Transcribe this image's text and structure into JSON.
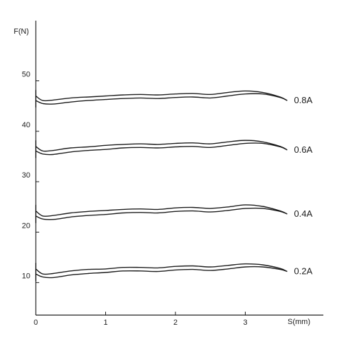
{
  "chart_data": {
    "type": "line",
    "title": "",
    "ylabel": "F(N)",
    "xlabel": "S(mm)",
    "xlim": [
      0,
      3.5
    ],
    "ylim": [
      5,
      55
    ],
    "xticks": [
      "0",
      "1",
      "2",
      "3"
    ],
    "yticks": [
      "10",
      "20",
      "30",
      "40",
      "50"
    ],
    "grid": false,
    "x": [
      0,
      0.1,
      0.25,
      0.5,
      0.75,
      1.0,
      1.25,
      1.5,
      1.75,
      2.0,
      2.25,
      2.5,
      2.75,
      3.0,
      3.25,
      3.5,
      3.6
    ],
    "series": [
      {
        "name": "0.2A",
        "upper": [
          12.7,
          11.7,
          11.8,
          12.3,
          12.6,
          12.7,
          13.0,
          13.0,
          12.9,
          13.2,
          13.3,
          13.1,
          13.4,
          13.7,
          13.5,
          12.8,
          12.2
        ],
        "lower": [
          11.7,
          11.1,
          11.0,
          11.5,
          11.8,
          12.0,
          12.3,
          12.3,
          12.2,
          12.5,
          12.6,
          12.4,
          12.7,
          13.1,
          13.1,
          12.6,
          12.2
        ]
      },
      {
        "name": "0.4A",
        "upper": [
          24.2,
          23.2,
          23.3,
          23.8,
          24.1,
          24.3,
          24.5,
          24.6,
          24.5,
          24.8,
          24.9,
          24.7,
          25.0,
          25.4,
          25.1,
          24.2,
          23.6
        ],
        "lower": [
          23.2,
          22.6,
          22.5,
          23.0,
          23.3,
          23.5,
          23.8,
          23.9,
          23.8,
          24.1,
          24.2,
          24.0,
          24.3,
          24.7,
          24.7,
          24.1,
          23.6
        ]
      },
      {
        "name": "0.6A",
        "upper": [
          37.0,
          36.1,
          36.2,
          36.7,
          36.9,
          37.2,
          37.4,
          37.5,
          37.4,
          37.6,
          37.7,
          37.5,
          37.9,
          38.2,
          37.9,
          37.0,
          36.3
        ],
        "lower": [
          36.1,
          35.5,
          35.4,
          35.9,
          36.2,
          36.4,
          36.7,
          36.8,
          36.7,
          36.9,
          37.0,
          36.8,
          37.2,
          37.6,
          37.6,
          36.9,
          36.3
        ]
      },
      {
        "name": "0.8A",
        "upper": [
          47.0,
          46.1,
          46.2,
          46.6,
          46.8,
          47.0,
          47.2,
          47.3,
          47.2,
          47.4,
          47.5,
          47.3,
          47.7,
          48.0,
          47.7,
          46.8,
          46.1
        ],
        "lower": [
          46.1,
          45.5,
          45.4,
          45.8,
          46.1,
          46.3,
          46.5,
          46.6,
          46.5,
          46.7,
          46.8,
          46.6,
          47.0,
          47.4,
          47.4,
          46.7,
          46.1
        ]
      }
    ]
  }
}
